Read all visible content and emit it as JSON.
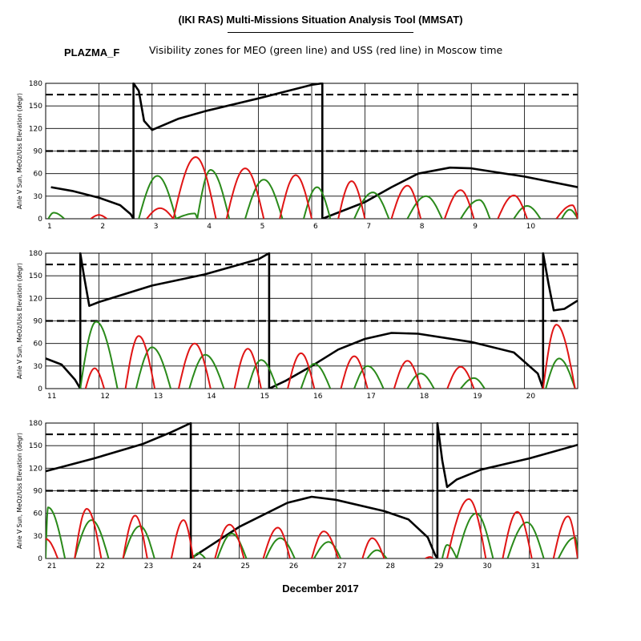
{
  "header": {
    "title": "(IKI RAS) Multi-Missions Situation Analysis Tool (MMSAT)",
    "satellite": "PLAZMA_F",
    "subtitle": "Visibility zones for MEO (green line) and USS (red line) in Moscow time"
  },
  "footer": {
    "month_label": "December 2017"
  },
  "colors": {
    "sun_angle": "#000000",
    "meo": "#2a8a1a",
    "uss": "#e01515",
    "reference": "#000000"
  },
  "chart_data": [
    {
      "type": "line",
      "panel": 1,
      "ylabel": "Anle V Sun, MeOz/Uss Elevation (degr)",
      "xlim": [
        1,
        11
      ],
      "ylim": [
        0,
        180
      ],
      "x_ticks": [
        1,
        2,
        3,
        4,
        5,
        6,
        7,
        8,
        9,
        10
      ],
      "y_ticks": [
        0,
        30,
        60,
        90,
        120,
        150,
        180
      ],
      "grid": true,
      "reference_lines": [
        90,
        165
      ],
      "series": [
        {
          "role": "sun_angle",
          "x": [
            1.1,
            1.5,
            2.0,
            2.4,
            2.6,
            2.65,
            2.65,
            2.75,
            2.85,
            3.0,
            3.5,
            4.0,
            5.0,
            6.0,
            6.2,
            6.2,
            7.0,
            7.5,
            8.0,
            8.6,
            9.0,
            10.0,
            11.0
          ],
          "y": [
            42,
            37,
            28,
            18,
            6,
            0,
            180,
            170,
            130,
            118,
            133,
            143,
            160,
            178,
            180,
            0,
            22,
            42,
            60,
            68,
            67,
            56,
            42
          ]
        },
        {
          "role": "meo",
          "peaks": [
            [
              1.05,
              1.15,
              1.35,
              8
            ],
            [
              2.75,
              3.1,
              3.45,
              57
            ],
            [
              3.45,
              3.8,
              3.85,
              7
            ],
            [
              3.85,
              4.1,
              4.45,
              65
            ],
            [
              4.75,
              5.1,
              5.45,
              52
            ],
            [
              5.85,
              6.1,
              6.35,
              42
            ],
            [
              6.8,
              7.15,
              7.45,
              35
            ],
            [
              7.8,
              8.15,
              8.45,
              30
            ],
            [
              8.8,
              9.15,
              9.35,
              25
            ],
            [
              9.8,
              10.05,
              10.3,
              17
            ],
            [
              10.7,
              10.85,
              11.0,
              12
            ]
          ]
        },
        {
          "role": "uss",
          "peaks": [
            [
              1.85,
              2.0,
              2.15,
              5
            ],
            [
              2.9,
              3.15,
              3.4,
              14
            ],
            [
              3.4,
              3.82,
              4.2,
              82
            ],
            [
              4.4,
              4.75,
              5.1,
              67
            ],
            [
              5.4,
              5.7,
              6.0,
              58
            ],
            [
              6.5,
              6.75,
              7.0,
              50
            ],
            [
              7.5,
              7.8,
              8.05,
              44
            ],
            [
              8.5,
              8.8,
              9.05,
              38
            ],
            [
              9.5,
              9.8,
              10.05,
              31
            ],
            [
              10.6,
              10.9,
              11.0,
              18
            ]
          ]
        }
      ]
    },
    {
      "type": "line",
      "panel": 2,
      "ylabel": "Anle V Sun, MeOz/Uss Elevation (degr)",
      "xlim": [
        11,
        21
      ],
      "ylim": [
        0,
        180
      ],
      "x_ticks": [
        11,
        12,
        13,
        14,
        15,
        16,
        17,
        18,
        19,
        20
      ],
      "y_ticks": [
        0,
        30,
        60,
        90,
        120,
        150,
        180
      ],
      "grid": true,
      "reference_lines": [
        90,
        165
      ],
      "series": [
        {
          "role": "sun_angle",
          "x": [
            11.0,
            11.3,
            11.55,
            11.65,
            11.65,
            11.72,
            11.82,
            12.0,
            13.0,
            14.0,
            15.0,
            15.2,
            15.2,
            15.5,
            16.0,
            16.5,
            17.0,
            17.5,
            18.0,
            19.0,
            19.8,
            20.25,
            20.35,
            20.35,
            20.45,
            20.55,
            20.75,
            21.0
          ],
          "y": [
            40,
            32,
            12,
            0,
            180,
            150,
            110,
            115,
            137,
            152,
            172,
            180,
            0,
            10,
            30,
            52,
            66,
            74,
            73,
            62,
            48,
            20,
            0,
            180,
            140,
            104,
            106,
            117
          ]
        },
        {
          "role": "meo",
          "peaks": [
            [
              11.65,
              11.95,
              12.35,
              89
            ],
            [
              12.7,
              13.0,
              13.35,
              55
            ],
            [
              13.7,
              14.0,
              14.35,
              45
            ],
            [
              14.8,
              15.05,
              15.35,
              38
            ],
            [
              15.8,
              16.05,
              16.35,
              33
            ],
            [
              16.8,
              17.05,
              17.35,
              30
            ],
            [
              17.8,
              18.05,
              18.3,
              20
            ],
            [
              18.8,
              19.05,
              19.25,
              14
            ],
            [
              20.4,
              20.65,
              20.95,
              40
            ]
          ]
        },
        {
          "role": "uss",
          "peaks": [
            [
              11.75,
              11.92,
              12.1,
              27
            ],
            [
              12.5,
              12.75,
              13.05,
              70
            ],
            [
              13.5,
              13.8,
              14.1,
              60
            ],
            [
              14.55,
              14.8,
              15.05,
              53
            ],
            [
              15.55,
              15.8,
              16.05,
              47
            ],
            [
              16.55,
              16.8,
              17.05,
              43
            ],
            [
              17.55,
              17.8,
              18.05,
              37
            ],
            [
              18.55,
              18.8,
              19.05,
              29
            ],
            [
              20.35,
              20.6,
              20.95,
              85
            ]
          ]
        }
      ]
    },
    {
      "type": "line",
      "panel": 3,
      "ylabel": "Anle V Sun, MeOz/Uss Elevation (degr)",
      "xlim": [
        21,
        32
      ],
      "ylim": [
        0,
        180
      ],
      "x_ticks": [
        21,
        22,
        23,
        24,
        25,
        26,
        27,
        28,
        29,
        30,
        31
      ],
      "y_ticks": [
        0,
        30,
        60,
        90,
        120,
        150,
        180
      ],
      "grid": true,
      "reference_lines": [
        90,
        165
      ],
      "series": [
        {
          "role": "sun_angle",
          "x": [
            21.0,
            22.0,
            23.0,
            23.6,
            24.0,
            24.0,
            25.0,
            26.0,
            26.5,
            27.0,
            28.0,
            28.5,
            28.9,
            29.05,
            29.1,
            29.1,
            29.2,
            29.3,
            29.5,
            30.0,
            31.0,
            32.0
          ],
          "y": [
            116,
            133,
            152,
            168,
            180,
            0,
            42,
            74,
            82,
            78,
            63,
            52,
            28,
            5,
            0,
            180,
            130,
            95,
            105,
            118,
            133,
            151
          ]
        },
        {
          "role": "meo",
          "peaks": [
            [
              21.0,
              21.05,
              21.4,
              68
            ],
            [
              21.6,
              21.95,
              22.3,
              51
            ],
            [
              22.6,
              22.95,
              23.25,
              43
            ],
            [
              24.05,
              24.15,
              24.3,
              7
            ],
            [
              24.55,
              24.85,
              25.15,
              33
            ],
            [
              25.55,
              25.85,
              26.15,
              27
            ],
            [
              26.55,
              26.85,
              27.1,
              22
            ],
            [
              27.65,
              27.85,
              28.05,
              11
            ],
            [
              29.2,
              29.3,
              29.5,
              18
            ],
            [
              29.5,
              29.9,
              30.25,
              60
            ],
            [
              30.55,
              30.95,
              31.3,
              48
            ],
            [
              31.6,
              31.95,
              32.0,
              28
            ]
          ]
        },
        {
          "role": "uss",
          "peaks": [
            [
              20.95,
              21.0,
              21.25,
              26
            ],
            [
              21.6,
              21.85,
              22.15,
              66
            ],
            [
              22.6,
              22.85,
              23.1,
              57
            ],
            [
              23.6,
              23.85,
              24.05,
              51
            ],
            [
              24.5,
              24.8,
              25.1,
              45
            ],
            [
              25.5,
              25.8,
              26.05,
              41
            ],
            [
              26.5,
              26.75,
              27.05,
              36
            ],
            [
              27.55,
              27.75,
              28.0,
              27
            ],
            [
              28.85,
              28.95,
              29.0,
              2
            ],
            [
              29.3,
              29.75,
              30.1,
              79
            ],
            [
              30.45,
              30.75,
              31.05,
              62
            ],
            [
              31.5,
              31.8,
              32.0,
              56
            ]
          ]
        }
      ]
    }
  ]
}
